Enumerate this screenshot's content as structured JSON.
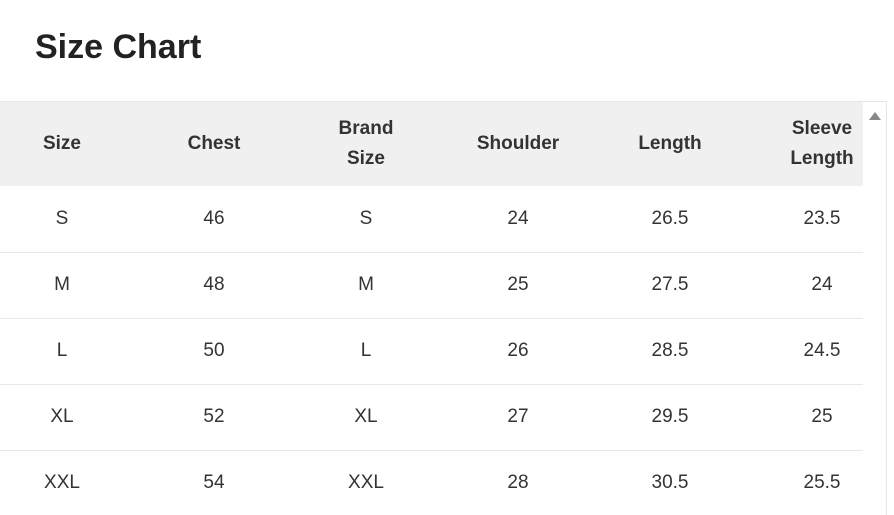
{
  "title": "Size Chart",
  "columns": [
    "Size",
    "Chest",
    "Brand\nSize",
    "Shoulder",
    "Length",
    "Sleeve\nLength"
  ],
  "rows": [
    [
      "S",
      "46",
      "S",
      "24",
      "26.5",
      "23.5"
    ],
    [
      "M",
      "48",
      "M",
      "25",
      "27.5",
      "24"
    ],
    [
      "L",
      "50",
      "L",
      "26",
      "28.5",
      "24.5"
    ],
    [
      "XL",
      "52",
      "XL",
      "27",
      "29.5",
      "25"
    ],
    [
      "XXL",
      "54",
      "XXL",
      "28",
      "30.5",
      "25.5"
    ]
  ]
}
